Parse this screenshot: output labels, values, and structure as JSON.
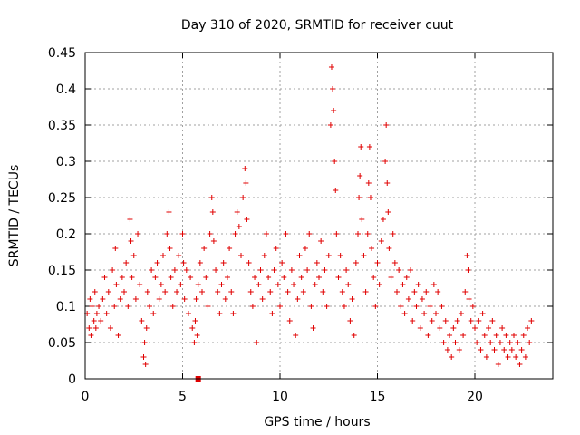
{
  "chart_data": {
    "type": "scatter",
    "title": "Day 310 of 2020, SRMTID for receiver cuut",
    "xlabel": "GPS time / hours",
    "ylabel": "SRMTID / TECUs",
    "xlim": [
      0,
      24
    ],
    "ylim": [
      0,
      0.45
    ],
    "xticks": [
      "0",
      "5",
      "10",
      "15",
      "20"
    ],
    "yticks": [
      "0",
      "0.05",
      "0.1",
      "0.15",
      "0.2",
      "0.25",
      "0.3",
      "0.35",
      "0.4",
      "0.45"
    ],
    "grid": true,
    "marker": "plus",
    "color": "#e00000",
    "points": [
      [
        0.1,
        0.09
      ],
      [
        0.2,
        0.07
      ],
      [
        0.25,
        0.11
      ],
      [
        0.3,
        0.06
      ],
      [
        0.35,
        0.1
      ],
      [
        0.45,
        0.08
      ],
      [
        0.5,
        0.12
      ],
      [
        0.55,
        0.07
      ],
      [
        0.6,
        0.09
      ],
      [
        0.7,
        0.1
      ],
      [
        0.8,
        0.08
      ],
      [
        0.9,
        0.11
      ],
      [
        1.0,
        0.14
      ],
      [
        1.1,
        0.09
      ],
      [
        1.2,
        0.12
      ],
      [
        1.3,
        0.07
      ],
      [
        1.4,
        0.15
      ],
      [
        1.5,
        0.1
      ],
      [
        1.55,
        0.18
      ],
      [
        1.6,
        0.13
      ],
      [
        1.7,
        0.06
      ],
      [
        1.8,
        0.11
      ],
      [
        1.9,
        0.14
      ],
      [
        2.0,
        0.12
      ],
      [
        2.1,
        0.16
      ],
      [
        2.2,
        0.1
      ],
      [
        2.3,
        0.22
      ],
      [
        2.35,
        0.19
      ],
      [
        2.4,
        0.14
      ],
      [
        2.5,
        0.17
      ],
      [
        2.6,
        0.11
      ],
      [
        2.7,
        0.2
      ],
      [
        2.8,
        0.13
      ],
      [
        2.9,
        0.08
      ],
      [
        3.0,
        0.03
      ],
      [
        3.05,
        0.05
      ],
      [
        3.1,
        0.02
      ],
      [
        3.15,
        0.07
      ],
      [
        3.2,
        0.12
      ],
      [
        3.3,
        0.1
      ],
      [
        3.4,
        0.15
      ],
      [
        3.5,
        0.09
      ],
      [
        3.6,
        0.14
      ],
      [
        3.7,
        0.16
      ],
      [
        3.8,
        0.11
      ],
      [
        3.9,
        0.13
      ],
      [
        4.0,
        0.17
      ],
      [
        4.1,
        0.12
      ],
      [
        4.2,
        0.2
      ],
      [
        4.3,
        0.23
      ],
      [
        4.35,
        0.18
      ],
      [
        4.4,
        0.14
      ],
      [
        4.5,
        0.1
      ],
      [
        4.6,
        0.15
      ],
      [
        4.7,
        0.12
      ],
      [
        4.8,
        0.17
      ],
      [
        4.9,
        0.13
      ],
      [
        5.0,
        0.2
      ],
      [
        5.05,
        0.16
      ],
      [
        5.1,
        0.11
      ],
      [
        5.2,
        0.15
      ],
      [
        5.3,
        0.09
      ],
      [
        5.4,
        0.14
      ],
      [
        5.5,
        0.07
      ],
      [
        5.6,
        0.05
      ],
      [
        5.65,
        0.08
      ],
      [
        5.7,
        0.11
      ],
      [
        5.75,
        0.06
      ],
      [
        5.8,
        0.13
      ],
      [
        5.9,
        0.16
      ],
      [
        6.0,
        0.12
      ],
      [
        6.1,
        0.18
      ],
      [
        6.2,
        0.14
      ],
      [
        6.3,
        0.1
      ],
      [
        6.4,
        0.2
      ],
      [
        6.5,
        0.25
      ],
      [
        6.55,
        0.23
      ],
      [
        6.6,
        0.19
      ],
      [
        6.7,
        0.15
      ],
      [
        6.8,
        0.12
      ],
      [
        6.9,
        0.09
      ],
      [
        7.0,
        0.13
      ],
      [
        7.1,
        0.16
      ],
      [
        7.2,
        0.11
      ],
      [
        7.3,
        0.14
      ],
      [
        7.4,
        0.18
      ],
      [
        7.5,
        0.12
      ],
      [
        7.6,
        0.09
      ],
      [
        7.7,
        0.2
      ],
      [
        7.8,
        0.23
      ],
      [
        7.9,
        0.21
      ],
      [
        8.0,
        0.17
      ],
      [
        8.1,
        0.25
      ],
      [
        8.2,
        0.29
      ],
      [
        8.25,
        0.27
      ],
      [
        8.3,
        0.22
      ],
      [
        8.4,
        0.16
      ],
      [
        8.5,
        0.12
      ],
      [
        8.6,
        0.1
      ],
      [
        8.7,
        0.14
      ],
      [
        8.8,
        0.05
      ],
      [
        8.9,
        0.13
      ],
      [
        9.0,
        0.15
      ],
      [
        9.1,
        0.11
      ],
      [
        9.2,
        0.17
      ],
      [
        9.3,
        0.2
      ],
      [
        9.4,
        0.14
      ],
      [
        9.5,
        0.12
      ],
      [
        9.6,
        0.09
      ],
      [
        9.7,
        0.15
      ],
      [
        9.8,
        0.18
      ],
      [
        9.9,
        0.13
      ],
      [
        10.0,
        0.1
      ],
      [
        10.1,
        0.16
      ],
      [
        10.2,
        0.14
      ],
      [
        10.3,
        0.2
      ],
      [
        10.4,
        0.12
      ],
      [
        10.5,
        0.08
      ],
      [
        10.6,
        0.15
      ],
      [
        10.7,
        0.13
      ],
      [
        10.8,
        0.06
      ],
      [
        10.9,
        0.11
      ],
      [
        11.0,
        0.17
      ],
      [
        11.1,
        0.14
      ],
      [
        11.2,
        0.12
      ],
      [
        11.3,
        0.18
      ],
      [
        11.4,
        0.15
      ],
      [
        11.5,
        0.2
      ],
      [
        11.6,
        0.1
      ],
      [
        11.7,
        0.07
      ],
      [
        11.8,
        0.13
      ],
      [
        11.9,
        0.16
      ],
      [
        12.0,
        0.14
      ],
      [
        12.1,
        0.19
      ],
      [
        12.2,
        0.12
      ],
      [
        12.3,
        0.15
      ],
      [
        12.4,
        0.1
      ],
      [
        12.5,
        0.17
      ],
      [
        12.6,
        0.35
      ],
      [
        12.65,
        0.43
      ],
      [
        12.7,
        0.4
      ],
      [
        12.75,
        0.37
      ],
      [
        12.8,
        0.3
      ],
      [
        12.85,
        0.26
      ],
      [
        12.9,
        0.2
      ],
      [
        13.0,
        0.14
      ],
      [
        13.1,
        0.17
      ],
      [
        13.2,
        0.12
      ],
      [
        13.3,
        0.1
      ],
      [
        13.4,
        0.15
      ],
      [
        13.5,
        0.13
      ],
      [
        13.6,
        0.08
      ],
      [
        13.7,
        0.11
      ],
      [
        13.8,
        0.06
      ],
      [
        13.9,
        0.16
      ],
      [
        14.0,
        0.2
      ],
      [
        14.05,
        0.25
      ],
      [
        14.1,
        0.28
      ],
      [
        14.15,
        0.32
      ],
      [
        14.2,
        0.22
      ],
      [
        14.3,
        0.17
      ],
      [
        14.4,
        0.12
      ],
      [
        14.5,
        0.2
      ],
      [
        14.55,
        0.27
      ],
      [
        14.6,
        0.32
      ],
      [
        14.65,
        0.25
      ],
      [
        14.7,
        0.18
      ],
      [
        14.8,
        0.14
      ],
      [
        14.9,
        0.1
      ],
      [
        15.0,
        0.16
      ],
      [
        15.1,
        0.13
      ],
      [
        15.2,
        0.19
      ],
      [
        15.3,
        0.22
      ],
      [
        15.4,
        0.3
      ],
      [
        15.45,
        0.35
      ],
      [
        15.5,
        0.27
      ],
      [
        15.55,
        0.23
      ],
      [
        15.6,
        0.18
      ],
      [
        15.7,
        0.14
      ],
      [
        15.8,
        0.2
      ],
      [
        15.9,
        0.16
      ],
      [
        16.0,
        0.12
      ],
      [
        16.1,
        0.15
      ],
      [
        16.2,
        0.1
      ],
      [
        16.3,
        0.13
      ],
      [
        16.4,
        0.09
      ],
      [
        16.5,
        0.14
      ],
      [
        16.6,
        0.11
      ],
      [
        16.7,
        0.15
      ],
      [
        16.8,
        0.08
      ],
      [
        16.9,
        0.12
      ],
      [
        17.0,
        0.1
      ],
      [
        17.1,
        0.13
      ],
      [
        17.2,
        0.07
      ],
      [
        17.3,
        0.11
      ],
      [
        17.4,
        0.09
      ],
      [
        17.5,
        0.12
      ],
      [
        17.6,
        0.06
      ],
      [
        17.7,
        0.1
      ],
      [
        17.8,
        0.08
      ],
      [
        17.9,
        0.13
      ],
      [
        18.0,
        0.09
      ],
      [
        18.1,
        0.12
      ],
      [
        18.2,
        0.07
      ],
      [
        18.3,
        0.1
      ],
      [
        18.4,
        0.05
      ],
      [
        18.5,
        0.08
      ],
      [
        18.6,
        0.04
      ],
      [
        18.7,
        0.06
      ],
      [
        18.8,
        0.03
      ],
      [
        18.9,
        0.07
      ],
      [
        19.0,
        0.05
      ],
      [
        19.1,
        0.08
      ],
      [
        19.2,
        0.04
      ],
      [
        19.3,
        0.09
      ],
      [
        19.4,
        0.06
      ],
      [
        19.5,
        0.12
      ],
      [
        19.6,
        0.17
      ],
      [
        19.65,
        0.15
      ],
      [
        19.7,
        0.11
      ],
      [
        19.8,
        0.08
      ],
      [
        19.9,
        0.1
      ],
      [
        20.0,
        0.07
      ],
      [
        20.1,
        0.05
      ],
      [
        20.2,
        0.08
      ],
      [
        20.3,
        0.04
      ],
      [
        20.4,
        0.09
      ],
      [
        20.5,
        0.06
      ],
      [
        20.6,
        0.03
      ],
      [
        20.7,
        0.07
      ],
      [
        20.8,
        0.05
      ],
      [
        20.9,
        0.08
      ],
      [
        21.0,
        0.04
      ],
      [
        21.1,
        0.06
      ],
      [
        21.2,
        0.02
      ],
      [
        21.3,
        0.05
      ],
      [
        21.4,
        0.07
      ],
      [
        21.5,
        0.04
      ],
      [
        21.6,
        0.06
      ],
      [
        21.7,
        0.03
      ],
      [
        21.8,
        0.05
      ],
      [
        21.9,
        0.04
      ],
      [
        22.0,
        0.06
      ],
      [
        22.1,
        0.03
      ],
      [
        22.2,
        0.05
      ],
      [
        22.3,
        0.02
      ],
      [
        22.4,
        0.04
      ],
      [
        22.5,
        0.06
      ],
      [
        22.6,
        0.03
      ],
      [
        22.7,
        0.07
      ],
      [
        22.8,
        0.05
      ],
      [
        22.9,
        0.08
      ]
    ],
    "highlight_points": [
      [
        5.8,
        0.0
      ]
    ]
  }
}
